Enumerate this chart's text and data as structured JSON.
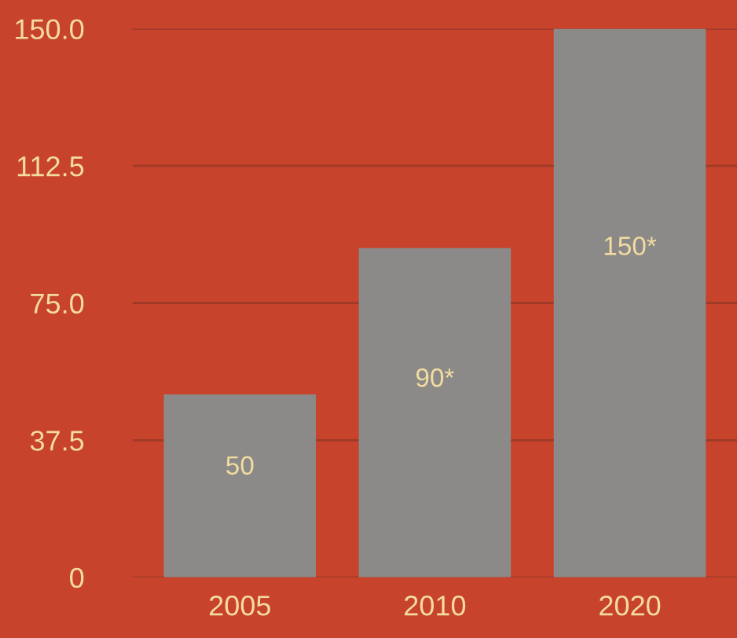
{
  "chart_data": {
    "type": "bar",
    "categories": [
      "2005",
      "2010",
      "2020"
    ],
    "values": [
      50,
      90,
      150
    ],
    "color": "#8c8a88",
    "value_labels": [
      "50",
      "90*",
      "150*"
    ],
    "ylim": [
      0,
      150
    ],
    "yticks": [
      0,
      {
        "value": 37.5,
        "label": "37.5"
      },
      {
        "value": 75,
        "label": "75.0"
      },
      {
        "value": 112.5,
        "label": "112.5"
      },
      {
        "value": 150,
        "label": "150.0"
      }
    ],
    "grid": "y"
  }
}
